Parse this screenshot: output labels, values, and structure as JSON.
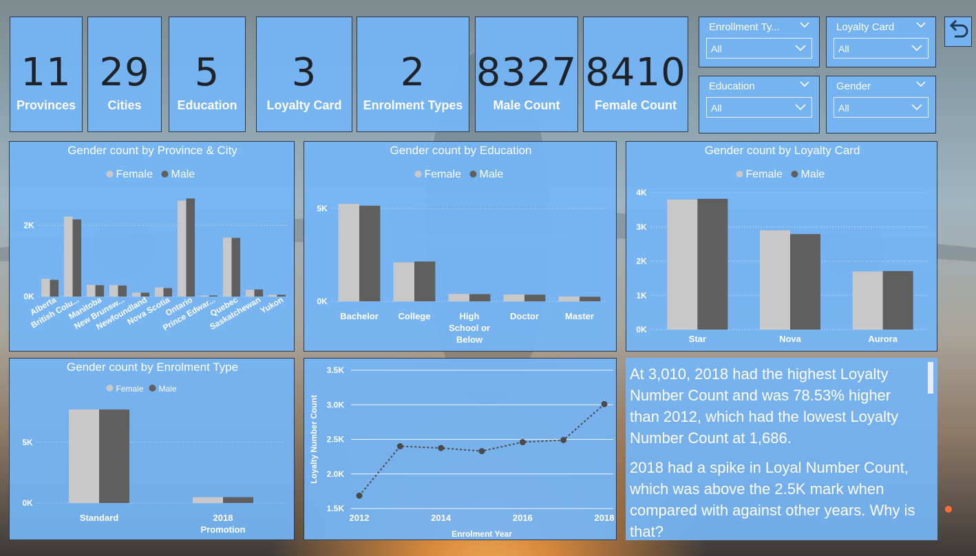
{
  "kpis": [
    {
      "value": "11",
      "label": "Provinces"
    },
    {
      "value": "29",
      "label": "Cities"
    },
    {
      "value": "5",
      "label": "Education"
    },
    {
      "value": "3",
      "label": "Loyalty Card"
    },
    {
      "value": "2",
      "label": "Enrolment Types"
    },
    {
      "value": "8327",
      "label": "Male Count"
    },
    {
      "value": "8410",
      "label": "Female Count"
    }
  ],
  "slicers": [
    {
      "title": "Enrollment Ty...",
      "value": "All"
    },
    {
      "title": "Loyalty Card",
      "value": "All"
    },
    {
      "title": "Education",
      "value": "All"
    },
    {
      "title": "Gender",
      "value": "All"
    }
  ],
  "colors": {
    "female": "#c8c8c8",
    "male": "#5f5f5f",
    "tile": "#74b5f6"
  },
  "icons": {
    "back": "undo-arrow-icon",
    "dropdown": "chevron-down-icon"
  },
  "chart_data": [
    {
      "type": "bar",
      "title": "Gender count by Province & City",
      "legend": [
        "Female",
        "Male"
      ],
      "legend_position": "top-center",
      "categories": [
        "Alberta",
        "British Colu...",
        "Manitoba",
        "New Brunsw...",
        "Newfoundland",
        "Nova Scotia",
        "Ontario",
        "Prince Edwar...",
        "Quebec",
        "Saskatchewan",
        "Yukon"
      ],
      "series": [
        {
          "name": "Female",
          "values": [
            500,
            2250,
            330,
            320,
            110,
            260,
            2700,
            30,
            1660,
            190,
            50
          ]
        },
        {
          "name": "Male",
          "values": [
            470,
            2170,
            320,
            310,
            110,
            240,
            2760,
            30,
            1650,
            200,
            50
          ]
        }
      ],
      "yticks": [
        "0K",
        "2K"
      ],
      "ylim": [
        0,
        3000
      ],
      "grid": true
    },
    {
      "type": "bar",
      "title": "Gender count by Education",
      "legend": [
        "Female",
        "Male"
      ],
      "legend_position": "top-center",
      "categories": [
        "Bachelor",
        "College",
        "High School or Below",
        "Doctor",
        "Master"
      ],
      "series": [
        {
          "name": "Female",
          "values": [
            5250,
            2100,
            400,
            370,
            260
          ]
        },
        {
          "name": "Male",
          "values": [
            5150,
            2150,
            390,
            360,
            250
          ]
        }
      ],
      "yticks": [
        "0K",
        "5K"
      ],
      "ylim": [
        0,
        6000
      ],
      "grid": true
    },
    {
      "type": "bar",
      "title": "Gender count by Loyalty Card",
      "legend": [
        "Female",
        "Male"
      ],
      "legend_position": "top-center",
      "categories": [
        "Star",
        "Nova",
        "Aurora"
      ],
      "series": [
        {
          "name": "Female",
          "values": [
            3800,
            2900,
            1700
          ]
        },
        {
          "name": "Male",
          "values": [
            3820,
            2790,
            1710
          ]
        }
      ],
      "yticks": [
        "0K",
        "1K",
        "2K",
        "3K",
        "4K"
      ],
      "ylim": [
        0,
        4000
      ],
      "grid": true
    },
    {
      "type": "bar",
      "title": "Gender count by Enrolment Type",
      "legend": [
        "Female",
        "Male"
      ],
      "legend_position": "top-center",
      "categories": [
        "Standard",
        "2018 Promotion"
      ],
      "series": [
        {
          "name": "Female",
          "values": [
            7700,
            480
          ]
        },
        {
          "name": "Male",
          "values": [
            7700,
            480
          ]
        }
      ],
      "yticks": [
        "0K",
        "5K"
      ],
      "ylim": [
        0,
        8500
      ],
      "grid": true
    },
    {
      "type": "line",
      "title": "",
      "xlabel": "Enrolment Year",
      "ylabel": "Loyalty Number Count",
      "x": [
        2012,
        2013,
        2014,
        2015,
        2016,
        2017,
        2018
      ],
      "values": [
        1686,
        2400,
        2375,
        2330,
        2460,
        2490,
        3010
      ],
      "xticks": [
        "2012",
        "2014",
        "2016",
        "2018"
      ],
      "yticks": [
        "1.5K",
        "2.0K",
        "2.5K",
        "3.0K",
        "3.5K"
      ],
      "ylim": [
        1500,
        3500
      ],
      "grid": true
    }
  ],
  "insight": {
    "paragraphs": [
      "At 3,010, 2018 had the highest Loyalty Number Count and was 78.53% higher than 2012, which had the lowest Loyalty Number Count at 1,686.",
      "2018 had a spike in Loyal Number Count, which was above the 2.5K mark when compared with against other years. Why is that?"
    ]
  }
}
